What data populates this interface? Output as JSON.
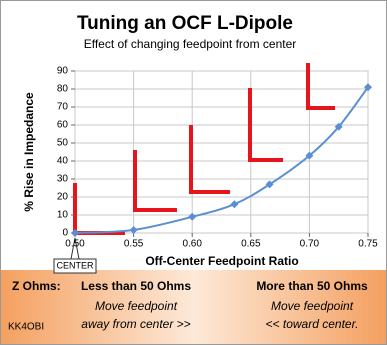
{
  "chart_data": {
    "type": "line",
    "title": "Tuning an OCF L-Dipole",
    "subtitle": "Effect of changing feedpoint from center",
    "x_label": "Off-Center Feedpoint Ratio",
    "y_label": "% Rise in Impedance",
    "x": [
      0.5,
      0.55,
      0.6,
      0.636,
      0.666,
      0.7,
      0.725,
      0.75
    ],
    "values": [
      0,
      1.7,
      9,
      16,
      27,
      43,
      59,
      81
    ],
    "color": "#5b8fd4",
    "xlim": [
      0.5,
      0.75
    ],
    "ylim": [
      0,
      90
    ],
    "xticks": [
      {
        "value": 0.5,
        "label": "0.50"
      },
      0.55,
      {
        "value": 0.6,
        "label": "0.60"
      },
      0.65,
      {
        "value": 0.7,
        "label": "0.70"
      },
      0.75
    ],
    "yticks": [
      0,
      10,
      20,
      30,
      40,
      50,
      60,
      70,
      80,
      90
    ],
    "grid": true,
    "annotation": "CENTER"
  },
  "footer": {
    "z_label": "Z Ohms:",
    "left_heading": "Less than 50 Ohms",
    "left_line1": "Move feedpoint",
    "left_line2": "away from center >>",
    "right_heading": "More than 50 Ohms",
    "right_line1": "Move feedpoint",
    "right_line2": "<< toward center.",
    "credit": "KK4OBI"
  }
}
